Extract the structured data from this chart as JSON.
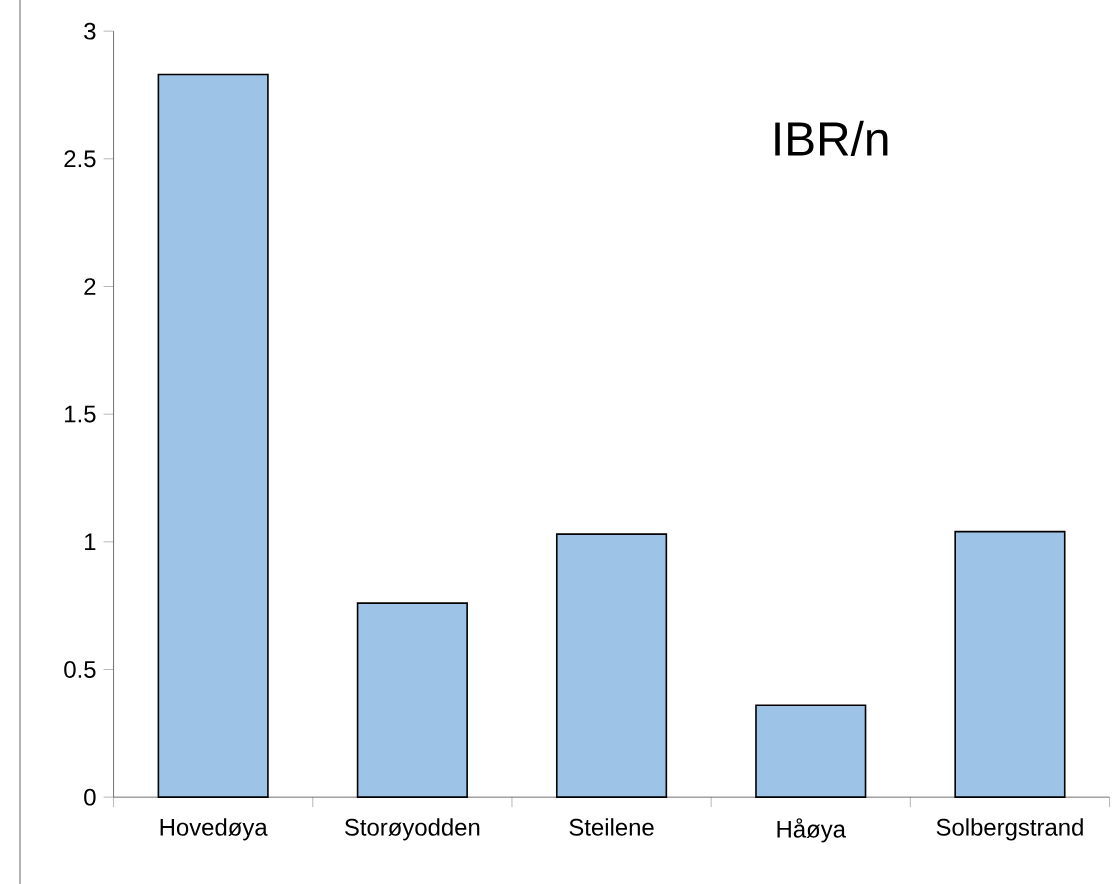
{
  "chart_data": {
    "type": "bar",
    "annotations": [
      "IBR/n"
    ],
    "categories": [
      "Hovedøya",
      "Storøyodden",
      "Steilene",
      "Håøya",
      "Solbergstrand"
    ],
    "values": [
      2.83,
      0.76,
      1.03,
      0.36,
      1.04
    ],
    "color": "#9dc3e6",
    "ylim": [
      0,
      3
    ],
    "yticks": [
      0,
      0.5,
      1,
      1.5,
      2,
      2.5,
      3
    ]
  }
}
